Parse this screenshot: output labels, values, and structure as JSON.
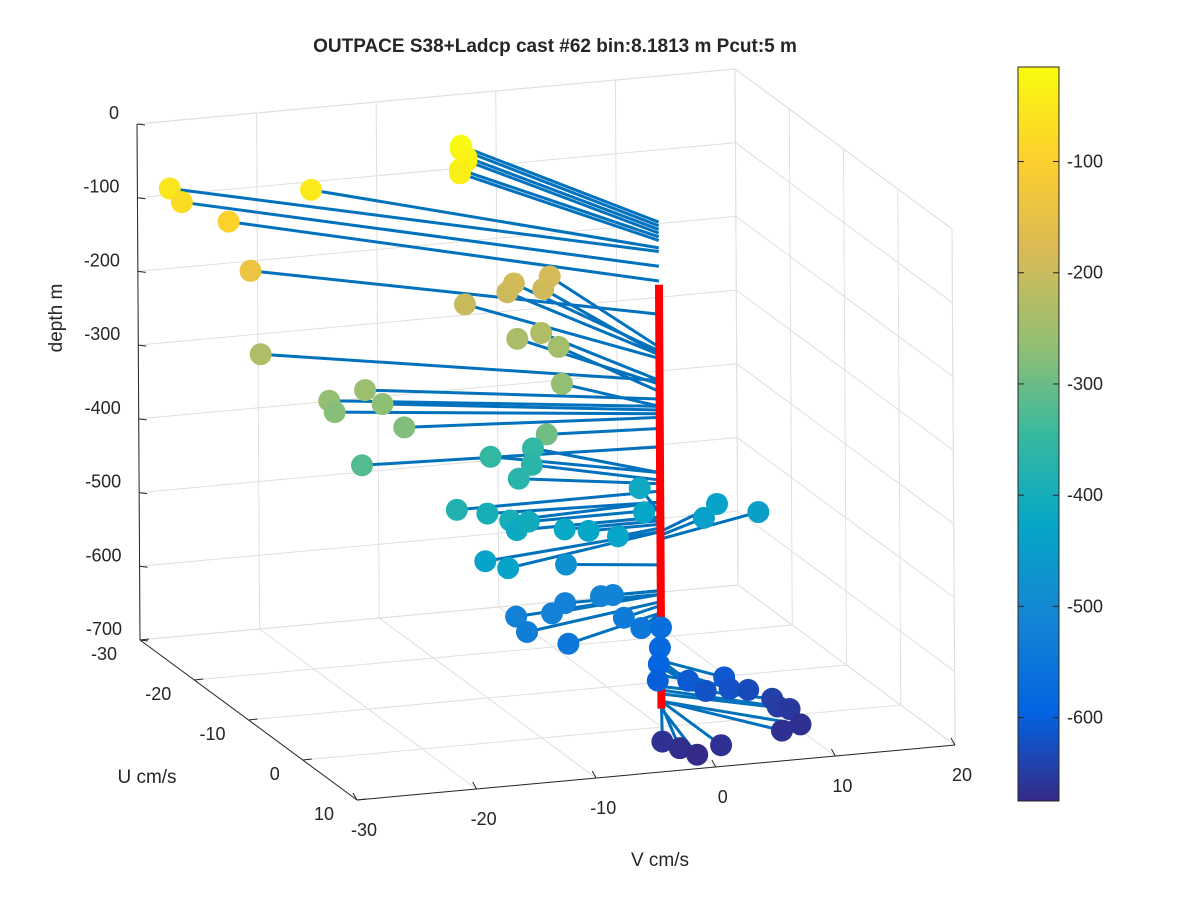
{
  "chart_data": {
    "type": "scatter3d",
    "title": "OUTPACE S38+Ladcp cast #62 bin:8.1813 m  Pcut:5 m",
    "xlabel": "V cm/s",
    "ylabel": "U cm/s",
    "zlabel": "depth m",
    "xlim": [
      -30,
      20
    ],
    "ylim": [
      -30,
      10
    ],
    "zlim": [
      -700,
      0
    ],
    "x_ticks": [
      "-30",
      "-20",
      "-10",
      "0",
      "10",
      "20"
    ],
    "y_ticks": [
      "-30",
      "-20",
      "-10",
      "0",
      "10"
    ],
    "z_ticks": [
      "0",
      "-100",
      "-200",
      "-300",
      "-400",
      "-500",
      "-600",
      "-700"
    ],
    "grid": true,
    "colorbar": {
      "location": "right",
      "colormap": "parula",
      "ticks": [
        "-100",
        "-200",
        "-300",
        "-400",
        "-500",
        "-600"
      ],
      "range": [
        -675,
        -15
      ]
    },
    "stem": {
      "color": "#ff0000",
      "depth_top": -100,
      "depth_bottom": -675
    },
    "vector_color": "#0072bd",
    "points": [
      {
        "v": -7,
        "u": -21,
        "depth": -15
      },
      {
        "v": -7,
        "u": -21,
        "depth": -20
      },
      {
        "v": -7,
        "u": -20,
        "depth": -25
      },
      {
        "v": -7,
        "u": -20,
        "depth": -30
      },
      {
        "v": -8,
        "u": -19,
        "depth": -35
      },
      {
        "v": -8,
        "u": -19,
        "depth": -40
      },
      {
        "v": -30,
        "u": -24,
        "depth": -55
      },
      {
        "v": -20,
        "u": -20,
        "depth": -50
      },
      {
        "v": -29,
        "u": -24,
        "depth": -75
      },
      {
        "v": -26,
        "u": -22,
        "depth": -95
      },
      {
        "v": -26,
        "u": -18,
        "depth": -140
      },
      {
        "v": -27,
        "u": -14,
        "depth": -230
      },
      {
        "v": -24,
        "u": -8,
        "depth": -265
      },
      {
        "v": -24,
        "u": -7,
        "depth": -275
      },
      {
        "v": -21,
        "u": -8,
        "depth": -255
      },
      {
        "v": -20,
        "u": -7,
        "depth": -270
      },
      {
        "v": -20,
        "u": -3,
        "depth": -280
      },
      {
        "v": -9,
        "u": -16,
        "depth": -200
      },
      {
        "v": -6,
        "u": -13,
        "depth": -235
      },
      {
        "v": -4,
        "u": -13,
        "depth": -230
      },
      {
        "v": -3,
        "u": -12,
        "depth": -245
      },
      {
        "v": -5,
        "u": -17,
        "depth": -195
      },
      {
        "v": -4,
        "u": -18,
        "depth": -190
      },
      {
        "v": -2,
        "u": -17,
        "depth": -195
      },
      {
        "v": -1,
        "u": -18,
        "depth": -185
      },
      {
        "v": -5,
        "u": -7,
        "depth": -265
      },
      {
        "v": -9,
        "u": -1,
        "depth": -295
      },
      {
        "v": -24,
        "u": -2,
        "depth": -320
      },
      {
        "v": -17,
        "u": 0,
        "depth": -380
      },
      {
        "v": -11,
        "u": -7,
        "depth": -355
      },
      {
        "v": -10,
        "u": -4,
        "depth": -370
      },
      {
        "v": -7,
        "u": -8,
        "depth": -355
      },
      {
        "v": -8,
        "u": -6,
        "depth": -365
      },
      {
        "v": -14,
        "u": -1,
        "depth": -395
      },
      {
        "v": -13,
        "u": 1,
        "depth": -395
      },
      {
        "v": -12,
        "u": 0,
        "depth": -415
      },
      {
        "v": -11,
        "u": 0,
        "depth": -405
      },
      {
        "v": -16,
        "u": 3,
        "depth": -435
      },
      {
        "v": -15,
        "u": 5,
        "depth": -435
      },
      {
        "v": -8,
        "u": 0,
        "depth": -420
      },
      {
        "v": -6,
        "u": 0,
        "depth": -425
      },
      {
        "v": -4,
        "u": 1,
        "depth": -430
      },
      {
        "v": 1,
        "u": -6,
        "depth": -410
      },
      {
        "v": 0,
        "u": -3,
        "depth": -425
      },
      {
        "v": 5,
        "u": -3,
        "depth": -440
      },
      {
        "v": 7,
        "u": -5,
        "depth": -435
      },
      {
        "v": 10,
        "u": -4,
        "depth": -445
      },
      {
        "v": -7,
        "u": -2,
        "depth": -480
      },
      {
        "v": -13,
        "u": 2,
        "depth": -520
      },
      {
        "v": -13,
        "u": 4,
        "depth": -530
      },
      {
        "v": -10,
        "u": 2,
        "depth": -520
      },
      {
        "v": -10,
        "u": 5,
        "depth": -545
      },
      {
        "v": -8,
        "u": 0,
        "depth": -520
      },
      {
        "v": -5,
        "u": 0,
        "depth": -515
      },
      {
        "v": -4,
        "u": 0,
        "depth": -515
      },
      {
        "v": -4,
        "u": 2,
        "depth": -535
      },
      {
        "v": -3,
        "u": 3,
        "depth": -545
      },
      {
        "v": 0,
        "u": 0,
        "depth": -565
      },
      {
        "v": -1,
        "u": 2,
        "depth": -580
      },
      {
        "v": -2,
        "u": 4,
        "depth": -590
      },
      {
        "v": -3,
        "u": 6,
        "depth": -600
      },
      {
        "v": 0,
        "u": 5,
        "depth": -610
      },
      {
        "v": 1,
        "u": 6,
        "depth": -620
      },
      {
        "v": 3,
        "u": 5,
        "depth": -610
      },
      {
        "v": 3,
        "u": 6,
        "depth": -620
      },
      {
        "v": 5,
        "u": 5,
        "depth": -630
      },
      {
        "v": 7,
        "u": 5,
        "depth": -645
      },
      {
        "v": 7,
        "u": 6,
        "depth": -650
      },
      {
        "v": 8,
        "u": 6,
        "depth": -655
      },
      {
        "v": 8,
        "u": 8,
        "depth": -665
      },
      {
        "v": 6,
        "u": 9,
        "depth": -665
      },
      {
        "v": -4,
        "u": 9,
        "depth": -665
      },
      {
        "v": -3,
        "u": 10,
        "depth": -670
      },
      {
        "v": -2,
        "u": 11,
        "depth": -675
      },
      {
        "v": 0,
        "u": 11,
        "depth": -665
      }
    ]
  }
}
